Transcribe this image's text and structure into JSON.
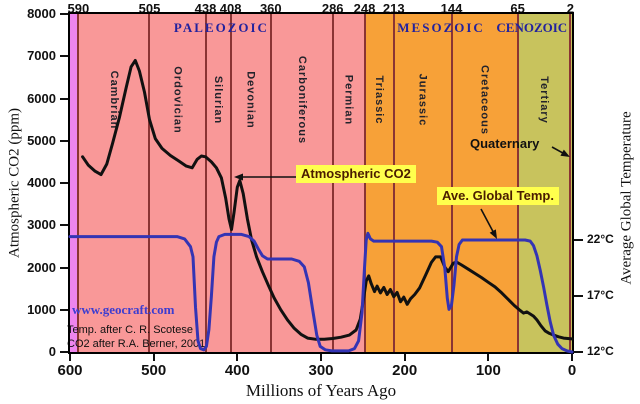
{
  "chart_data": {
    "type": "line",
    "title": "",
    "xlabel": "Millions of Years Ago",
    "ylabel_left": "Atmospheric CO2 (ppm)",
    "ylabel_right": "Average Global Temperature",
    "x_axis": {
      "min": 0,
      "max": 600,
      "direction": "reversed",
      "ticks": [
        600,
        500,
        400,
        300,
        200,
        100,
        0
      ]
    },
    "y_left": {
      "min": 0,
      "max": 8000,
      "ticks": [
        0,
        1000,
        2000,
        3000,
        4000,
        5000,
        6000,
        7000,
        8000
      ]
    },
    "y_right": {
      "tick_values": [
        12,
        17,
        22
      ],
      "tick_labels": [
        "12°C",
        "17°C",
        "22°C"
      ]
    },
    "top_ticks": [
      590,
      505,
      438,
      408,
      360,
      286,
      248,
      213,
      144,
      65,
      2
    ],
    "eras": [
      {
        "label": "",
        "from": 600,
        "to": 590,
        "color": "#ee85ee"
      },
      {
        "label": "PALEOZOIC",
        "from": 590,
        "to": 248,
        "color": "#f99898"
      },
      {
        "label": "MESOZOIC",
        "from": 248,
        "to": 65,
        "color": "#f7a138"
      },
      {
        "label": "CENOZOIC",
        "from": 65,
        "to": 0,
        "color": "#c8c35d"
      }
    ],
    "periods": [
      {
        "label": "Cambrian",
        "from": 590,
        "to": 505
      },
      {
        "label": "Ordovician",
        "from": 505,
        "to": 438
      },
      {
        "label": "Silurian",
        "from": 438,
        "to": 408
      },
      {
        "label": "Devonian",
        "from": 408,
        "to": 360
      },
      {
        "label": "Carboniferous",
        "from": 360,
        "to": 286
      },
      {
        "label": "Permian",
        "from": 286,
        "to": 248
      },
      {
        "label": "Triassic",
        "from": 248,
        "to": 213
      },
      {
        "label": "Jurassic",
        "from": 213,
        "to": 144
      },
      {
        "label": "Cretaceous",
        "from": 144,
        "to": 65
      },
      {
        "label": "Tertiary",
        "from": 65,
        "to": 2
      },
      {
        "label": "Quaternary",
        "from": 2,
        "to": 0
      }
    ],
    "series": [
      {
        "name": "Atmospheric CO2",
        "axis": "left",
        "color": "#111111",
        "unit": "ppm",
        "points": [
          [
            585,
            4620
          ],
          [
            578,
            4420
          ],
          [
            570,
            4280
          ],
          [
            563,
            4200
          ],
          [
            556,
            4450
          ],
          [
            549,
            4950
          ],
          [
            541,
            5550
          ],
          [
            533,
            6250
          ],
          [
            527,
            6750
          ],
          [
            522,
            6900
          ],
          [
            517,
            6650
          ],
          [
            511,
            6150
          ],
          [
            505,
            5500
          ],
          [
            498,
            5050
          ],
          [
            490,
            4820
          ],
          [
            480,
            4650
          ],
          [
            470,
            4520
          ],
          [
            461,
            4400
          ],
          [
            454,
            4360
          ],
          [
            448,
            4560
          ],
          [
            443,
            4640
          ],
          [
            438,
            4620
          ],
          [
            431,
            4500
          ],
          [
            425,
            4360
          ],
          [
            419,
            4120
          ],
          [
            414,
            3650
          ],
          [
            410,
            3150
          ],
          [
            407,
            2900
          ],
          [
            404,
            3300
          ],
          [
            400,
            3900
          ],
          [
            397,
            4060
          ],
          [
            393,
            3750
          ],
          [
            388,
            3150
          ],
          [
            383,
            2650
          ],
          [
            377,
            2250
          ],
          [
            370,
            1900
          ],
          [
            363,
            1580
          ],
          [
            356,
            1280
          ],
          [
            348,
            1000
          ],
          [
            340,
            760
          ],
          [
            332,
            560
          ],
          [
            324,
            420
          ],
          [
            316,
            330
          ],
          [
            306,
            300
          ],
          [
            296,
            300
          ],
          [
            286,
            320
          ],
          [
            276,
            350
          ],
          [
            266,
            400
          ],
          [
            258,
            520
          ],
          [
            253,
            780
          ],
          [
            249,
            1280
          ],
          [
            246,
            1680
          ],
          [
            243,
            1800
          ],
          [
            240,
            1620
          ],
          [
            236,
            1430
          ],
          [
            233,
            1560
          ],
          [
            229,
            1400
          ],
          [
            225,
            1530
          ],
          [
            221,
            1360
          ],
          [
            217,
            1480
          ],
          [
            213,
            1310
          ],
          [
            209,
            1410
          ],
          [
            205,
            1190
          ],
          [
            201,
            1300
          ],
          [
            197,
            1130
          ],
          [
            193,
            1260
          ],
          [
            188,
            1360
          ],
          [
            182,
            1520
          ],
          [
            175,
            1820
          ],
          [
            168,
            2120
          ],
          [
            163,
            2250
          ],
          [
            157,
            2250
          ],
          [
            152,
            2010
          ],
          [
            148,
            1900
          ],
          [
            145,
            2000
          ],
          [
            142,
            2100
          ],
          [
            138,
            2130
          ],
          [
            132,
            2060
          ],
          [
            124,
            1960
          ],
          [
            116,
            1860
          ],
          [
            108,
            1760
          ],
          [
            100,
            1650
          ],
          [
            92,
            1540
          ],
          [
            84,
            1400
          ],
          [
            76,
            1240
          ],
          [
            69,
            1100
          ],
          [
            63,
            1000
          ],
          [
            58,
            920
          ],
          [
            54,
            950
          ],
          [
            50,
            900
          ],
          [
            46,
            850
          ],
          [
            42,
            760
          ],
          [
            37,
            620
          ],
          [
            32,
            500
          ],
          [
            27,
            440
          ],
          [
            22,
            400
          ],
          [
            16,
            360
          ],
          [
            10,
            330
          ],
          [
            0,
            310
          ]
        ]
      },
      {
        "name": "Ave. Global Temp.",
        "axis": "right",
        "color": "#3434b4",
        "unit": "°C",
        "points": [
          [
            600,
            22.3
          ],
          [
            570,
            22.3
          ],
          [
            540,
            22.3
          ],
          [
            510,
            22.3
          ],
          [
            490,
            22.3
          ],
          [
            472,
            22.3
          ],
          [
            463,
            22.1
          ],
          [
            456,
            21.4
          ],
          [
            453,
            20.5
          ],
          [
            450,
            16.0
          ],
          [
            447,
            13.0
          ],
          [
            444,
            12.3
          ],
          [
            440,
            12.2
          ],
          [
            437,
            12.5
          ],
          [
            434,
            14.0
          ],
          [
            431,
            17.0
          ],
          [
            428,
            20.5
          ],
          [
            425,
            21.8
          ],
          [
            422,
            22.3
          ],
          [
            415,
            22.5
          ],
          [
            405,
            22.5
          ],
          [
            395,
            22.5
          ],
          [
            386,
            22.3
          ],
          [
            380,
            21.9
          ],
          [
            375,
            21.2
          ],
          [
            370,
            20.6
          ],
          [
            364,
            20.3
          ],
          [
            355,
            20.3
          ],
          [
            345,
            20.3
          ],
          [
            335,
            20.3
          ],
          [
            326,
            20.1
          ],
          [
            320,
            19.6
          ],
          [
            315,
            18.2
          ],
          [
            310,
            15.8
          ],
          [
            305,
            13.5
          ],
          [
            301,
            12.5
          ],
          [
            295,
            12.2
          ],
          [
            287,
            12.1
          ],
          [
            277,
            12.1
          ],
          [
            267,
            12.1
          ],
          [
            260,
            12.3
          ],
          [
            255,
            13.0
          ],
          [
            251,
            15.5
          ],
          [
            248,
            19.5
          ],
          [
            246,
            22.0
          ],
          [
            244,
            22.6
          ],
          [
            241,
            22.1
          ],
          [
            237,
            21.9
          ],
          [
            228,
            21.9
          ],
          [
            218,
            21.9
          ],
          [
            208,
            21.9
          ],
          [
            198,
            21.9
          ],
          [
            188,
            21.9
          ],
          [
            178,
            21.9
          ],
          [
            168,
            21.9
          ],
          [
            161,
            21.8
          ],
          [
            156,
            21.4
          ],
          [
            152,
            19.5
          ],
          [
            149,
            16.8
          ],
          [
            147,
            15.8
          ],
          [
            144,
            16.2
          ],
          [
            141,
            18.0
          ],
          [
            138,
            20.5
          ],
          [
            135,
            21.6
          ],
          [
            131,
            22.0
          ],
          [
            124,
            22.0
          ],
          [
            114,
            22.0
          ],
          [
            104,
            22.0
          ],
          [
            94,
            22.0
          ],
          [
            84,
            22.0
          ],
          [
            74,
            22.0
          ],
          [
            64,
            22.0
          ],
          [
            56,
            22.0
          ],
          [
            50,
            21.9
          ],
          [
            46,
            21.5
          ],
          [
            42,
            20.6
          ],
          [
            38,
            19.3
          ],
          [
            34,
            17.8
          ],
          [
            30,
            16.2
          ],
          [
            26,
            14.7
          ],
          [
            22,
            13.5
          ],
          [
            17,
            12.7
          ],
          [
            12,
            12.3
          ],
          [
            6,
            12.1
          ],
          [
            0,
            12.0
          ]
        ]
      }
    ],
    "annotations": [
      {
        "label": "Atmospheric CO2",
        "bg": "#ffff4d",
        "text_color": "#4a1c00"
      },
      {
        "label": "Ave. Global Temp.",
        "bg": "#ffff4d",
        "text_color": "#4a1c00"
      }
    ],
    "credits": [
      "www.geocraft.com",
      "Temp. after C. R. Scotese",
      "CO2 after R.A. Berner, 2001"
    ],
    "colors": {
      "boundary_line": "#8a3434",
      "era_text": "#22229e",
      "frame": "#000000"
    }
  }
}
